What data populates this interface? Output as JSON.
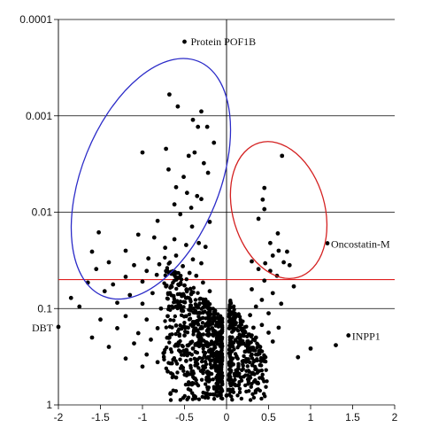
{
  "chart_data": {
    "type": "scatter",
    "title": "",
    "xlabel": "",
    "ylabel": "",
    "xlim": [
      -2,
      2
    ],
    "ylim": [
      0.0001,
      1
    ],
    "y_scale": "log",
    "y_axis_inverted": true,
    "grid": "horizontal gridlines at decades",
    "x_ticks": [
      "-2",
      "-1.5",
      "-1",
      "-0.5",
      "0",
      "0.5",
      "1",
      "1.5",
      "2"
    ],
    "y_ticks": [
      "0.0001",
      "0.001",
      "0.01",
      "0.1",
      "1"
    ],
    "threshold_line": {
      "y": 0.05,
      "color": "#e02020"
    },
    "annotations": [
      {
        "text": "Protein POF1B",
        "x": -0.5,
        "y": 0.00017
      },
      {
        "text": "Oncostatin-M",
        "x": 1.2,
        "y": 0.021
      },
      {
        "text": "INPP1",
        "x": 1.45,
        "y": 0.19
      },
      {
        "text": "DBT",
        "x": -2.0,
        "y": 0.155
      }
    ],
    "highlight_ellipses": [
      {
        "cx": -0.9,
        "cy": 0.0045,
        "color": "#2b2bc8"
      },
      {
        "cx": 0.62,
        "cy": 0.0095,
        "color": "#d42020"
      }
    ],
    "points_color": "#000000",
    "points": [
      [
        -0.5,
        0.00017
      ],
      [
        1.2,
        0.021
      ],
      [
        1.45,
        0.19
      ],
      [
        -2.0,
        0.155
      ],
      [
        -0.68,
        0.0006
      ],
      [
        -0.58,
        0.0008
      ],
      [
        -0.4,
        0.0011
      ],
      [
        -0.3,
        0.0009
      ],
      [
        -0.34,
        0.0013
      ],
      [
        -0.23,
        0.0013
      ],
      [
        -0.15,
        0.0019
      ],
      [
        -0.72,
        0.0022
      ],
      [
        -0.45,
        0.0026
      ],
      [
        -0.38,
        0.0024
      ],
      [
        -1.0,
        0.0024
      ],
      [
        -0.69,
        0.0036
      ],
      [
        -0.51,
        0.0043
      ],
      [
        -0.27,
        0.0031
      ],
      [
        -0.22,
        0.0039
      ],
      [
        -0.6,
        0.0055
      ],
      [
        -0.47,
        0.0063
      ],
      [
        -0.35,
        0.0068
      ],
      [
        -0.62,
        0.0083
      ],
      [
        -0.42,
        0.009
      ],
      [
        -0.3,
        0.0073
      ],
      [
        -0.55,
        0.0105
      ],
      [
        -0.82,
        0.0123
      ],
      [
        -0.41,
        0.0141
      ],
      [
        -0.2,
        0.0126
      ],
      [
        -1.05,
        0.0171
      ],
      [
        -0.86,
        0.0183
      ],
      [
        -0.62,
        0.0191
      ],
      [
        -1.52,
        0.0162
      ],
      [
        -0.48,
        0.0219
      ],
      [
        -0.33,
        0.0209
      ],
      [
        -1.2,
        0.0251
      ],
      [
        -1.6,
        0.0257
      ],
      [
        -0.73,
        0.0234
      ],
      [
        -0.25,
        0.0229
      ],
      [
        -0.93,
        0.0302
      ],
      [
        -0.6,
        0.0282
      ],
      [
        -0.4,
        0.0309
      ],
      [
        -1.4,
        0.0331
      ],
      [
        -1.1,
        0.0355
      ],
      [
        -0.8,
        0.0347
      ],
      [
        -0.52,
        0.0363
      ],
      [
        -0.3,
        0.0339
      ],
      [
        -1.55,
        0.0389
      ],
      [
        -0.95,
        0.0407
      ],
      [
        -0.66,
        0.0417
      ],
      [
        -0.44,
        0.0427
      ],
      [
        -1.2,
        0.0468
      ],
      [
        -0.83,
        0.0447
      ],
      [
        -0.58,
        0.0479
      ],
      [
        -0.36,
        0.0457
      ],
      [
        -1.65,
        0.0537
      ],
      [
        -1.35,
        0.0562
      ],
      [
        -1.0,
        0.0525
      ],
      [
        -0.72,
        0.0589
      ],
      [
        -0.5,
        0.0575
      ],
      [
        -0.28,
        0.0537
      ],
      [
        -1.85,
        0.0776
      ],
      [
        -1.45,
        0.0661
      ],
      [
        -1.15,
        0.0724
      ],
      [
        -0.88,
        0.0692
      ],
      [
        -0.63,
        0.0741
      ],
      [
        -0.42,
        0.0708
      ],
      [
        -0.2,
        0.0661
      ],
      [
        -1.75,
        0.0955
      ],
      [
        -1.3,
        0.0871
      ],
      [
        -1.0,
        0.0891
      ],
      [
        -0.78,
        0.1
      ],
      [
        -0.55,
        0.0933
      ],
      [
        -0.34,
        0.0977
      ],
      [
        -1.5,
        0.13
      ],
      [
        -1.2,
        0.12
      ],
      [
        -0.95,
        0.13
      ],
      [
        -0.7,
        0.12
      ],
      [
        -0.48,
        0.12
      ],
      [
        -0.28,
        0.11
      ],
      [
        -1.6,
        0.2
      ],
      [
        -1.3,
        0.16
      ],
      [
        -1.05,
        0.18
      ],
      [
        -0.82,
        0.16
      ],
      [
        -0.6,
        0.15
      ],
      [
        -0.4,
        0.15
      ],
      [
        -0.22,
        0.14
      ],
      [
        -1.4,
        0.25
      ],
      [
        -1.1,
        0.23
      ],
      [
        -0.9,
        0.21
      ],
      [
        -0.68,
        0.2
      ],
      [
        -0.5,
        0.19
      ],
      [
        -0.33,
        0.18
      ],
      [
        -0.15,
        0.17
      ],
      [
        -0.95,
        0.3
      ],
      [
        -0.75,
        0.29
      ],
      [
        -0.55,
        0.28
      ],
      [
        -0.4,
        0.26
      ],
      [
        -0.25,
        0.24
      ],
      [
        -0.12,
        0.22
      ],
      [
        -0.65,
        0.37
      ],
      [
        -0.48,
        0.35
      ],
      [
        -0.35,
        0.34
      ],
      [
        -0.22,
        0.32
      ],
      [
        -0.1,
        0.3
      ],
      [
        -0.4,
        0.45
      ],
      [
        -0.28,
        0.43
      ],
      [
        -0.18,
        0.41
      ],
      [
        -0.08,
        0.39
      ],
      [
        -0.2,
        0.55
      ],
      [
        -0.12,
        0.52
      ],
      [
        -0.05,
        0.5
      ],
      [
        -0.06,
        0.7
      ],
      [
        0.0,
        0.8
      ],
      [
        0.66,
        0.0026
      ],
      [
        0.45,
        0.0056
      ],
      [
        0.43,
        0.0074
      ],
      [
        0.45,
        0.0093
      ],
      [
        0.38,
        0.0117
      ],
      [
        0.61,
        0.0166
      ],
      [
        0.52,
        0.0209
      ],
      [
        0.72,
        0.0257
      ],
      [
        0.62,
        0.0251
      ],
      [
        0.55,
        0.0282
      ],
      [
        0.3,
        0.0324
      ],
      [
        0.46,
        0.0339
      ],
      [
        0.68,
        0.0331
      ],
      [
        0.75,
        0.0355
      ],
      [
        0.38,
        0.0389
      ],
      [
        0.52,
        0.0407
      ],
      [
        0.6,
        0.0457
      ],
      [
        0.45,
        0.0513
      ],
      [
        0.8,
        0.0589
      ],
      [
        0.3,
        0.0631
      ],
      [
        0.55,
        0.0692
      ],
      [
        0.42,
        0.0813
      ],
      [
        0.65,
        0.0891
      ],
      [
        0.35,
        0.0955
      ],
      [
        0.5,
        0.112
      ],
      [
        0.28,
        0.117
      ],
      [
        0.42,
        0.148
      ],
      [
        0.62,
        0.158
      ],
      [
        0.32,
        0.158
      ],
      [
        0.2,
        0.178
      ],
      [
        0.5,
        0.178
      ],
      [
        0.35,
        0.2
      ],
      [
        0.25,
        0.22
      ],
      [
        0.55,
        0.22
      ],
      [
        0.15,
        0.24
      ],
      [
        0.4,
        0.25
      ],
      [
        0.22,
        0.28
      ],
      [
        0.3,
        0.3
      ],
      [
        0.12,
        0.32
      ],
      [
        0.2,
        0.35
      ],
      [
        0.08,
        0.38
      ],
      [
        0.14,
        0.42
      ],
      [
        0.05,
        0.45
      ],
      [
        0.1,
        0.5
      ],
      [
        0.03,
        0.55
      ],
      [
        0.06,
        0.62
      ],
      [
        0.02,
        0.7
      ],
      [
        1.3,
        0.24
      ],
      [
        1.0,
        0.26
      ],
      [
        0.85,
        0.32
      ],
      [
        -1.2,
        0.33
      ],
      [
        -1.0,
        0.4
      ],
      [
        -0.82,
        0.36
      ],
      [
        -0.7,
        0.45
      ],
      [
        -0.6,
        0.52
      ]
    ]
  }
}
